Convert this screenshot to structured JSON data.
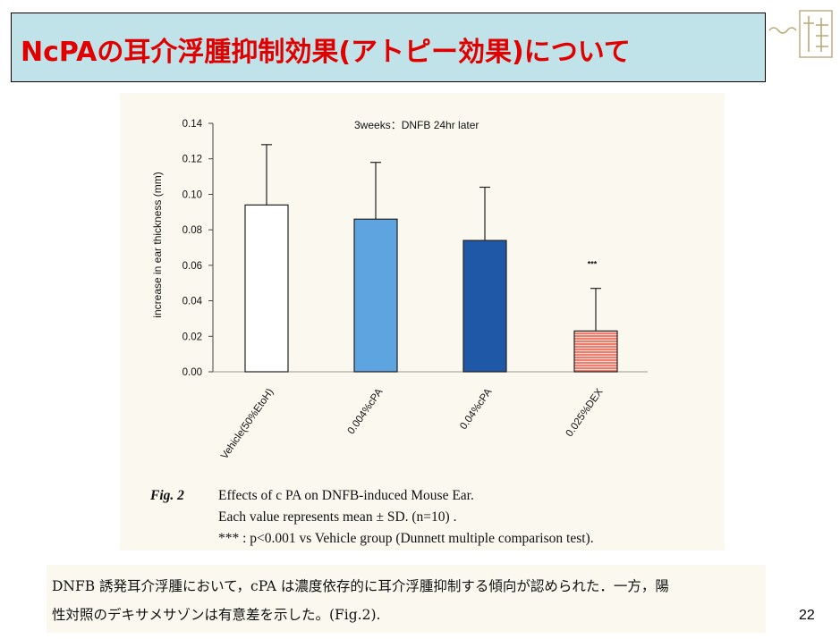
{
  "slide": {
    "title": "NcPAの耳介浮腫抑制効果(アトピー効果)について",
    "page_number": "22"
  },
  "chart_data": {
    "type": "bar",
    "title": "3weeks：DNFB 24hr later",
    "ylabel": "increase in ear thickness (mm)",
    "xlabel": "",
    "ylim": [
      0,
      0.14
    ],
    "yticks": [
      "0.00",
      "0.02",
      "0.04",
      "0.06",
      "0.08",
      "0.10",
      "0.12",
      "0.14"
    ],
    "categories": [
      "Vehicle(50%EtoH)",
      "0.004%cPA",
      "0.04%cPA",
      "0.025%DEX"
    ],
    "values": [
      0.094,
      0.086,
      0.074,
      0.023
    ],
    "errors": [
      0.034,
      0.032,
      0.03,
      0.024
    ],
    "colors": [
      "#ffffff",
      "#5ea4e0",
      "#1f58a6",
      "#ef7e6c"
    ],
    "annotations": [
      {
        "category": "0.025%DEX",
        "text": "***"
      }
    ]
  },
  "caption": {
    "label": "Fig. 2",
    "line1": "Effects of  c PA   on DNFB-induced Mouse Ear.",
    "line2": "Each value represents mean ± SD.   (n=10) .",
    "line3": "*** : p<0.001 vs Vehicle group (Dunnett multiple comparison test)."
  },
  "body_text": {
    "line1": "DNFB 誘発耳介浮腫において，cPA は濃度依存的に耳介浮腫抑制する傾向が認められた．一方，陽",
    "line2": "性対照のデキサメサゾンは有意差を示した。(Fig.2)."
  }
}
